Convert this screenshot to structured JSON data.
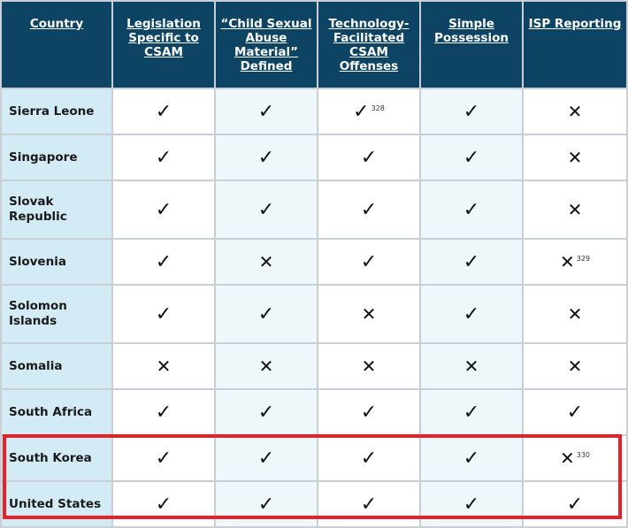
{
  "headers": [
    "Country",
    "Legislation Specific to CSAM",
    "“Child Sexual Abuse Material” Defined",
    "Technology-Facilitated CSAM Offenses",
    "Simple Possession",
    "ISP Reporting"
  ],
  "rows": [
    {
      "country": "Sierra Leone",
      "cells": [
        {
          "mark": "✓",
          "note": ""
        },
        {
          "mark": "✓",
          "note": ""
        },
        {
          "mark": "✓",
          "note": "328"
        },
        {
          "mark": "✓",
          "note": ""
        },
        {
          "mark": "✕",
          "note": ""
        }
      ]
    },
    {
      "country": "Singapore",
      "cells": [
        {
          "mark": "✓",
          "note": ""
        },
        {
          "mark": "✓",
          "note": ""
        },
        {
          "mark": "✓",
          "note": ""
        },
        {
          "mark": "✓",
          "note": ""
        },
        {
          "mark": "✕",
          "note": ""
        }
      ]
    },
    {
      "country": "Slovak Republic",
      "cells": [
        {
          "mark": "✓",
          "note": ""
        },
        {
          "mark": "✓",
          "note": ""
        },
        {
          "mark": "✓",
          "note": ""
        },
        {
          "mark": "✓",
          "note": ""
        },
        {
          "mark": "✕",
          "note": ""
        }
      ]
    },
    {
      "country": "Slovenia",
      "cells": [
        {
          "mark": "✓",
          "note": ""
        },
        {
          "mark": "✕",
          "note": ""
        },
        {
          "mark": "✓",
          "note": ""
        },
        {
          "mark": "✓",
          "note": ""
        },
        {
          "mark": "✕",
          "note": "329"
        }
      ]
    },
    {
      "country": "Solomon Islands",
      "cells": [
        {
          "mark": "✓",
          "note": ""
        },
        {
          "mark": "✓",
          "note": ""
        },
        {
          "mark": "✕",
          "note": ""
        },
        {
          "mark": "✓",
          "note": ""
        },
        {
          "mark": "✕",
          "note": ""
        }
      ]
    },
    {
      "country": "Somalia",
      "cells": [
        {
          "mark": "✕",
          "note": ""
        },
        {
          "mark": "✕",
          "note": ""
        },
        {
          "mark": "✕",
          "note": ""
        },
        {
          "mark": "✕",
          "note": ""
        },
        {
          "mark": "✕",
          "note": ""
        }
      ]
    },
    {
      "country": "South Africa",
      "cells": [
        {
          "mark": "✓",
          "note": ""
        },
        {
          "mark": "✓",
          "note": ""
        },
        {
          "mark": "✓",
          "note": ""
        },
        {
          "mark": "✓",
          "note": ""
        },
        {
          "mark": "✓",
          "note": ""
        }
      ]
    },
    {
      "country": "South Korea",
      "cells": [
        {
          "mark": "✓",
          "note": ""
        },
        {
          "mark": "✓",
          "note": ""
        },
        {
          "mark": "✓",
          "note": ""
        },
        {
          "mark": "✓",
          "note": ""
        },
        {
          "mark": "✕",
          "note": "330"
        }
      ]
    },
    {
      "country": "United States",
      "cells": [
        {
          "mark": "✓",
          "note": ""
        },
        {
          "mark": "✓",
          "note": ""
        },
        {
          "mark": "✓",
          "note": ""
        },
        {
          "mark": "✓",
          "note": ""
        },
        {
          "mark": "✓",
          "note": ""
        }
      ]
    }
  ],
  "colors": {
    "header_bg": "#0e4463",
    "country_bg": "#d3ebf5",
    "alt_col_bg": "#eef7fa",
    "highlight": "#e8202a"
  }
}
